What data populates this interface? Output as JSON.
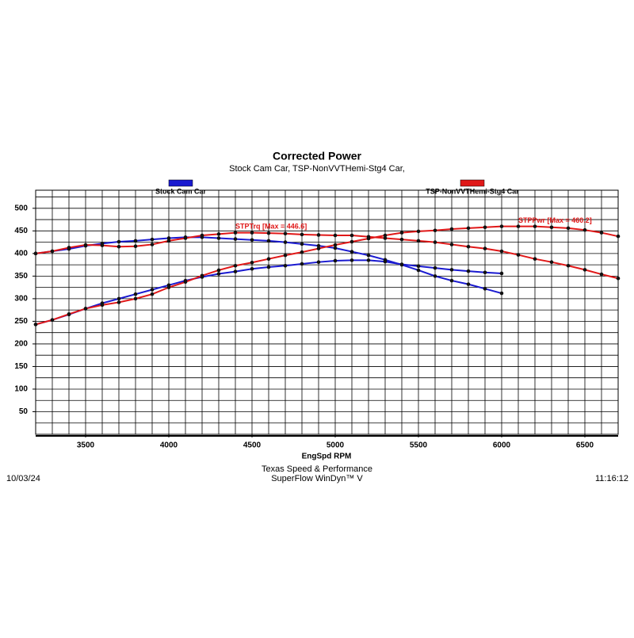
{
  "chart_data": {
    "type": "line",
    "title": "Corrected Power",
    "subtitle": "Stock Cam Car, TSP-NonVVTHemi-Stg4 Car,",
    "x_label": "EngSpd RPM",
    "footer": [
      "Texas Speed & Performance",
      "SuperFlow WinDyn™ V"
    ],
    "date": "10/03/24",
    "time": "11:16:12",
    "x": [
      3200,
      3300,
      3400,
      3500,
      3600,
      3700,
      3800,
      3900,
      4000,
      4100,
      4200,
      4300,
      4400,
      4500,
      4600,
      4700,
      4800,
      4900,
      5000,
      5100,
      5200,
      5300,
      5400,
      5500,
      5600,
      5700,
      5800,
      5900,
      6000,
      6100,
      6200,
      6300,
      6400,
      6500,
      6600,
      6700
    ],
    "series": [
      {
        "name": "Stock Cam Car",
        "color": "#1a1ad0",
        "torque": [
          400,
          405,
          410,
          417,
          422,
          426,
          428,
          431,
          434,
          436,
          436,
          434,
          432,
          430,
          428,
          425,
          421,
          417,
          412,
          404,
          396,
          386,
          375,
          363,
          350,
          340,
          332,
          322,
          312,
          null,
          null,
          null,
          null,
          null,
          null,
          null
        ],
        "power": [
          243,
          253,
          265,
          278,
          290,
          300,
          310,
          320,
          330,
          340,
          348,
          355,
          360,
          366,
          370,
          373,
          377,
          381,
          384,
          385,
          385,
          382,
          376,
          372,
          368,
          364,
          361,
          358,
          356,
          null,
          null,
          null,
          null,
          null,
          null,
          null
        ]
      },
      {
        "name": "TSP-NonVVTHemi-Stg4 Car",
        "color": "#e01818",
        "torque": [
          400,
          405,
          413,
          419,
          418,
          415,
          416,
          420,
          428,
          434,
          440,
          443,
          446,
          446,
          445,
          444,
          442,
          441,
          440,
          440,
          437,
          434,
          431,
          428,
          425,
          420,
          415,
          411,
          405,
          397,
          388,
          381,
          373,
          364,
          354,
          345
        ],
        "power": [
          243,
          253,
          266,
          278,
          286,
          292,
          300,
          310,
          325,
          337,
          351,
          363,
          373,
          380,
          388,
          396,
          403,
          411,
          419,
          426,
          433,
          440,
          446,
          449,
          451,
          454,
          456,
          458,
          460,
          460,
          460,
          458,
          456,
          452,
          446,
          438
        ]
      }
    ],
    "annotations": [
      {
        "text": "STPTrq [Max = 446.6]",
        "x": 4400,
        "y": 446.6
      },
      {
        "text": "STPPwr [Max = 460.2]",
        "x": 6100,
        "y": 460.2
      }
    ],
    "xlim": [
      3200,
      6700
    ],
    "xticks": [
      3500,
      4000,
      4500,
      5000,
      5500,
      6000,
      6500
    ],
    "xgrid": [
      3300,
      3400,
      3500,
      3600,
      3700,
      3800,
      3900,
      4000,
      4100,
      4200,
      4300,
      4400,
      4500,
      4600,
      4700,
      4800,
      4900,
      5000,
      5100,
      5200,
      5300,
      5400,
      5500,
      5600,
      5700,
      5800,
      5900,
      6000,
      6100,
      6200,
      6300,
      6400,
      6500,
      6600
    ],
    "ylim": [
      0,
      540
    ],
    "yticks": [
      50,
      100,
      150,
      200,
      250,
      300,
      350,
      400,
      450,
      500
    ],
    "ygrid": [
      25,
      50,
      75,
      100,
      125,
      150,
      175,
      200,
      225,
      250,
      275,
      300,
      325,
      350,
      375,
      400,
      425,
      450,
      475,
      500,
      525
    ],
    "grid": true
  }
}
